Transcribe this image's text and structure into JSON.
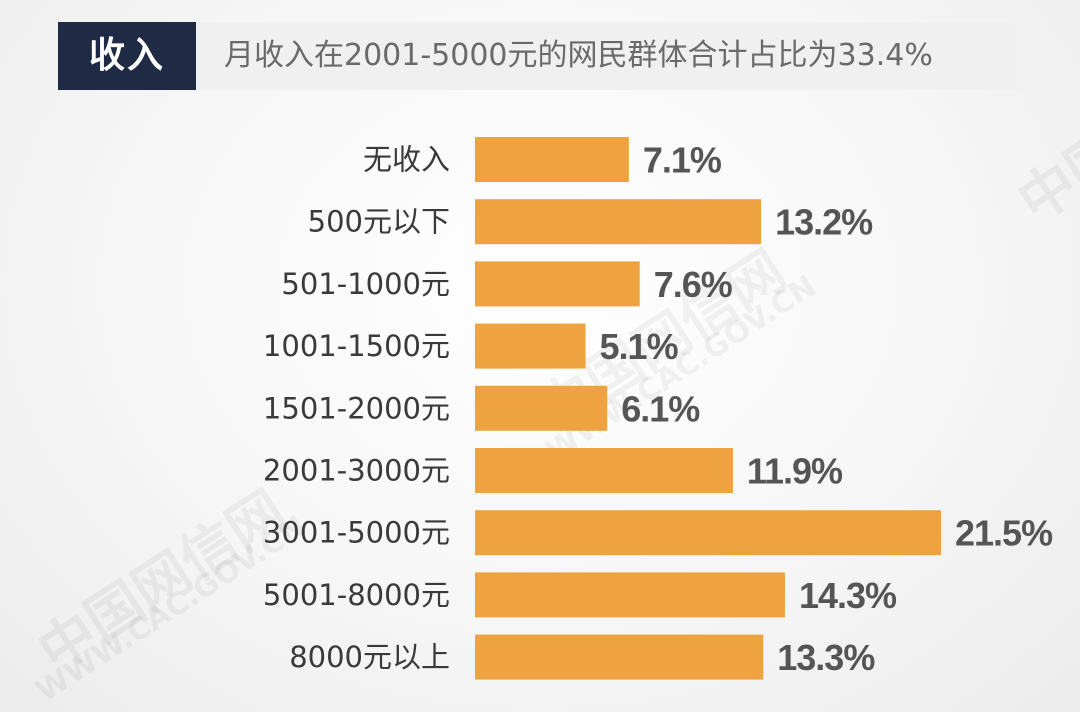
{
  "header": {
    "tag": "收入",
    "title": "月收入在2001-5000元的网民群体合计占比为33.4%"
  },
  "watermark": {
    "cn": "中国网信网",
    "en": "WWW.CAC.GOV.CN"
  },
  "colors": {
    "bar": "#eea340",
    "header_tag_bg": "#1f2a44"
  },
  "chart_data": {
    "type": "bar",
    "orientation": "horizontal",
    "categories": [
      "无收入",
      "500元以下",
      "501-1000元",
      "1001-1500元",
      "1501-2000元",
      "2001-3000元",
      "3001-5000元",
      "5001-8000元",
      "8000元以上"
    ],
    "values": [
      7.1,
      13.2,
      7.6,
      5.1,
      6.1,
      11.9,
      21.5,
      14.3,
      13.3
    ],
    "value_labels": [
      "7.1%",
      "13.2%",
      "7.6%",
      "5.1%",
      "6.1%",
      "11.9%",
      "21.5%",
      "14.3%",
      "13.3%"
    ],
    "unit": "%",
    "xlim": [
      0,
      21.5
    ],
    "grid": false,
    "legend": "none"
  }
}
